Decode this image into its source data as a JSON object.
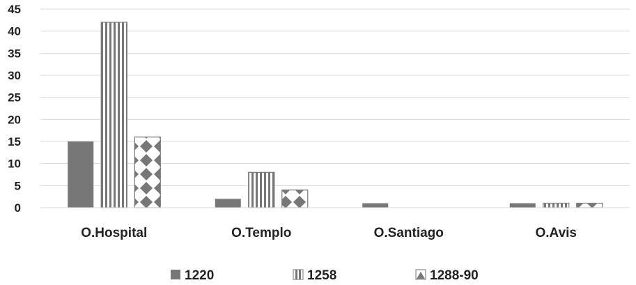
{
  "chart_data": {
    "type": "bar",
    "categories": [
      "O.Hospital",
      "O.Templo",
      "O.Santiago",
      "O.Avis"
    ],
    "series": [
      {
        "name": "1220",
        "values": [
          15,
          2,
          1,
          1
        ],
        "pattern": "solid",
        "color": "#777777"
      },
      {
        "name": "1258",
        "values": [
          42,
          8,
          0,
          1
        ],
        "pattern": "vertical-stripes",
        "color": "#777777"
      },
      {
        "name": "1288-90",
        "values": [
          16,
          4,
          0,
          1
        ],
        "pattern": "diamonds",
        "color": "#777777"
      }
    ],
    "title": "",
    "xlabel": "",
    "ylabel": "",
    "ylim": [
      0,
      45
    ],
    "yticks": [
      0,
      5,
      10,
      15,
      20,
      25,
      30,
      35,
      40,
      45
    ],
    "grid": true,
    "legend_position": "bottom"
  }
}
